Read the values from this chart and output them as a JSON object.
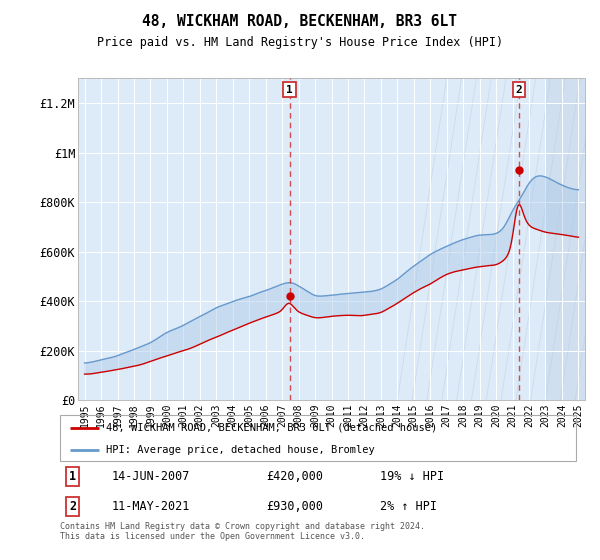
{
  "title": "48, WICKHAM ROAD, BECKENHAM, BR3 6LT",
  "subtitle": "Price paid vs. HM Land Registry's House Price Index (HPI)",
  "footnote": "Contains HM Land Registry data © Crown copyright and database right 2024.\nThis data is licensed under the Open Government Licence v3.0.",
  "legend_line1": "48, WICKHAM ROAD, BECKENHAM, BR3 6LT (detached house)",
  "legend_line2": "HPI: Average price, detached house, Bromley",
  "annotation1_date": "14-JUN-2007",
  "annotation1_price": "£420,000",
  "annotation1_hpi": "19% ↓ HPI",
  "annotation1_year": 2007.45,
  "annotation1_value": 420000,
  "annotation2_date": "11-MAY-2021",
  "annotation2_price": "£930,000",
  "annotation2_hpi": "2% ↑ HPI",
  "annotation2_year": 2021.37,
  "annotation2_value": 930000,
  "background_color": "#ddeaf7",
  "hatch_start": 2023.0,
  "line_red": "#cc0000",
  "line_blue": "#6699cc",
  "xlim": [
    1994.6,
    2025.4
  ],
  "ylim": [
    0,
    1300000
  ],
  "yticks": [
    0,
    200000,
    400000,
    600000,
    800000,
    1000000,
    1200000
  ],
  "ytick_labels": [
    "£0",
    "£200K",
    "£400K",
    "£600K",
    "£800K",
    "£1M",
    "£1.2M"
  ],
  "xtick_years": [
    1995,
    1996,
    1997,
    1998,
    1999,
    2000,
    2001,
    2002,
    2003,
    2004,
    2005,
    2006,
    2007,
    2008,
    2009,
    2010,
    2011,
    2012,
    2013,
    2014,
    2015,
    2016,
    2017,
    2018,
    2019,
    2020,
    2021,
    2022,
    2023,
    2024,
    2025
  ]
}
